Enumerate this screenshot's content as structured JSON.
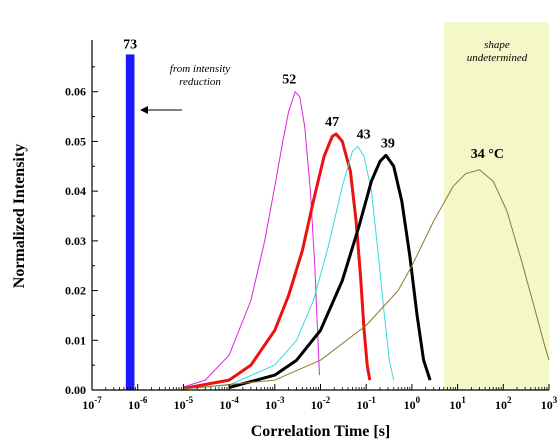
{
  "chart_data": {
    "type": "line",
    "title": "",
    "xlabel": "Correlation Time [s]",
    "ylabel": "Normalized Intensity",
    "x_scale": "log",
    "xlim": [
      1e-07,
      1000.0
    ],
    "ylim": [
      0,
      0.07
    ],
    "x_ticks": [
      {
        "value": 1e-07,
        "base": "10",
        "exp": "-7"
      },
      {
        "value": 1e-06,
        "base": "10",
        "exp": "-6"
      },
      {
        "value": 1e-05,
        "base": "10",
        "exp": "-5"
      },
      {
        "value": 0.0001,
        "base": "10",
        "exp": "-4"
      },
      {
        "value": 0.001,
        "base": "10",
        "exp": "-3"
      },
      {
        "value": 0.01,
        "base": "10",
        "exp": "-2"
      },
      {
        "value": 0.1,
        "base": "10",
        "exp": "-1"
      },
      {
        "value": 1.0,
        "base": "10",
        "exp": "0"
      },
      {
        "value": 10.0,
        "base": "10",
        "exp": "1"
      },
      {
        "value": 100.0,
        "base": "10",
        "exp": "2"
      },
      {
        "value": 1000.0,
        "base": "10",
        "exp": "3"
      }
    ],
    "y_ticks": [
      {
        "value": 0,
        "label": "0.00"
      },
      {
        "value": 0.01,
        "label": "0.01"
      },
      {
        "value": 0.02,
        "label": "0.02"
      },
      {
        "value": 0.03,
        "label": "0.03"
      },
      {
        "value": 0.04,
        "label": "0.04"
      },
      {
        "value": 0.05,
        "label": "0.05"
      },
      {
        "value": 0.06,
        "label": "0.06"
      }
    ],
    "grid": false,
    "bar": {
      "label": "73",
      "x_start": 5.5e-07,
      "x_end": 8.5e-07,
      "height": 0.0675,
      "color": "#1a1aff"
    },
    "series": [
      {
        "label": "52",
        "color": "#dd22dd",
        "stroke_width": 1,
        "peak_x": 0.0028,
        "peak_y": 0.06,
        "points": [
          [
            1e-05,
            0.0006
          ],
          [
            3e-05,
            0.002
          ],
          [
            0.0001,
            0.007
          ],
          [
            0.0003,
            0.018
          ],
          [
            0.0006,
            0.03
          ],
          [
            0.001,
            0.041
          ],
          [
            0.0015,
            0.05
          ],
          [
            0.002,
            0.056
          ],
          [
            0.0028,
            0.06
          ],
          [
            0.0035,
            0.059
          ],
          [
            0.0045,
            0.053
          ],
          [
            0.006,
            0.04
          ],
          [
            0.0075,
            0.025
          ],
          [
            0.0085,
            0.013
          ],
          [
            0.0095,
            0.003
          ]
        ]
      },
      {
        "label": "47",
        "color": "#ee1111",
        "stroke_width": 3,
        "peak_x": 0.022,
        "peak_y": 0.0515,
        "points": [
          [
            1e-05,
            0.0003
          ],
          [
            0.0001,
            0.002
          ],
          [
            0.0003,
            0.005
          ],
          [
            0.001,
            0.012
          ],
          [
            0.002,
            0.019
          ],
          [
            0.004,
            0.028
          ],
          [
            0.007,
            0.038
          ],
          [
            0.012,
            0.047
          ],
          [
            0.018,
            0.051
          ],
          [
            0.022,
            0.0515
          ],
          [
            0.03,
            0.05
          ],
          [
            0.045,
            0.044
          ],
          [
            0.06,
            0.034
          ],
          [
            0.075,
            0.023
          ],
          [
            0.09,
            0.012
          ],
          [
            0.105,
            0.005
          ],
          [
            0.12,
            0.002
          ]
        ]
      },
      {
        "label": "43",
        "color": "#33dddd",
        "stroke_width": 1,
        "peak_x": 0.065,
        "peak_y": 0.049,
        "points": [
          [
            1e-05,
            0.0002
          ],
          [
            0.0001,
            0.001
          ],
          [
            0.001,
            0.005
          ],
          [
            0.003,
            0.01
          ],
          [
            0.007,
            0.018
          ],
          [
            0.015,
            0.029
          ],
          [
            0.03,
            0.041
          ],
          [
            0.05,
            0.048
          ],
          [
            0.065,
            0.049
          ],
          [
            0.09,
            0.047
          ],
          [
            0.13,
            0.04
          ],
          [
            0.18,
            0.028
          ],
          [
            0.25,
            0.015
          ],
          [
            0.32,
            0.006
          ],
          [
            0.4,
            0.002
          ]
        ]
      },
      {
        "label": "39",
        "color": "#000000",
        "stroke_width": 3,
        "peak_x": 0.27,
        "peak_y": 0.0472,
        "points": [
          [
            0.0001,
            0.0005
          ],
          [
            0.001,
            0.003
          ],
          [
            0.003,
            0.006
          ],
          [
            0.01,
            0.012
          ],
          [
            0.03,
            0.022
          ],
          [
            0.07,
            0.033
          ],
          [
            0.13,
            0.042
          ],
          [
            0.2,
            0.046
          ],
          [
            0.27,
            0.0472
          ],
          [
            0.4,
            0.045
          ],
          [
            0.6,
            0.038
          ],
          [
            0.9,
            0.027
          ],
          [
            1.3,
            0.015
          ],
          [
            1.8,
            0.006
          ],
          [
            2.5,
            0.002
          ]
        ]
      },
      {
        "label": "34 °C",
        "color": "#8c7a30",
        "stroke_width": 1,
        "peak_x": 30,
        "peak_y": 0.0443,
        "points": [
          [
            1e-05,
            0.0002
          ],
          [
            0.001,
            0.002
          ],
          [
            0.01,
            0.006
          ],
          [
            0.1,
            0.013
          ],
          [
            0.5,
            0.02
          ],
          [
            1,
            0.025
          ],
          [
            3,
            0.034
          ],
          [
            8,
            0.041
          ],
          [
            15,
            0.0435
          ],
          [
            30,
            0.0443
          ],
          [
            60,
            0.042
          ],
          [
            120,
            0.036
          ],
          [
            250,
            0.026
          ],
          [
            500,
            0.016
          ],
          [
            800,
            0.009
          ],
          [
            1000,
            0.006
          ]
        ]
      }
    ],
    "annotations": {
      "intensity_lines": [
        "from intensity",
        "reduction"
      ],
      "shape_lines": [
        "shape",
        "undetermined"
      ],
      "shape_region": {
        "x_start": 5,
        "x_end": 1000,
        "color": "#f4f8c8"
      }
    }
  }
}
